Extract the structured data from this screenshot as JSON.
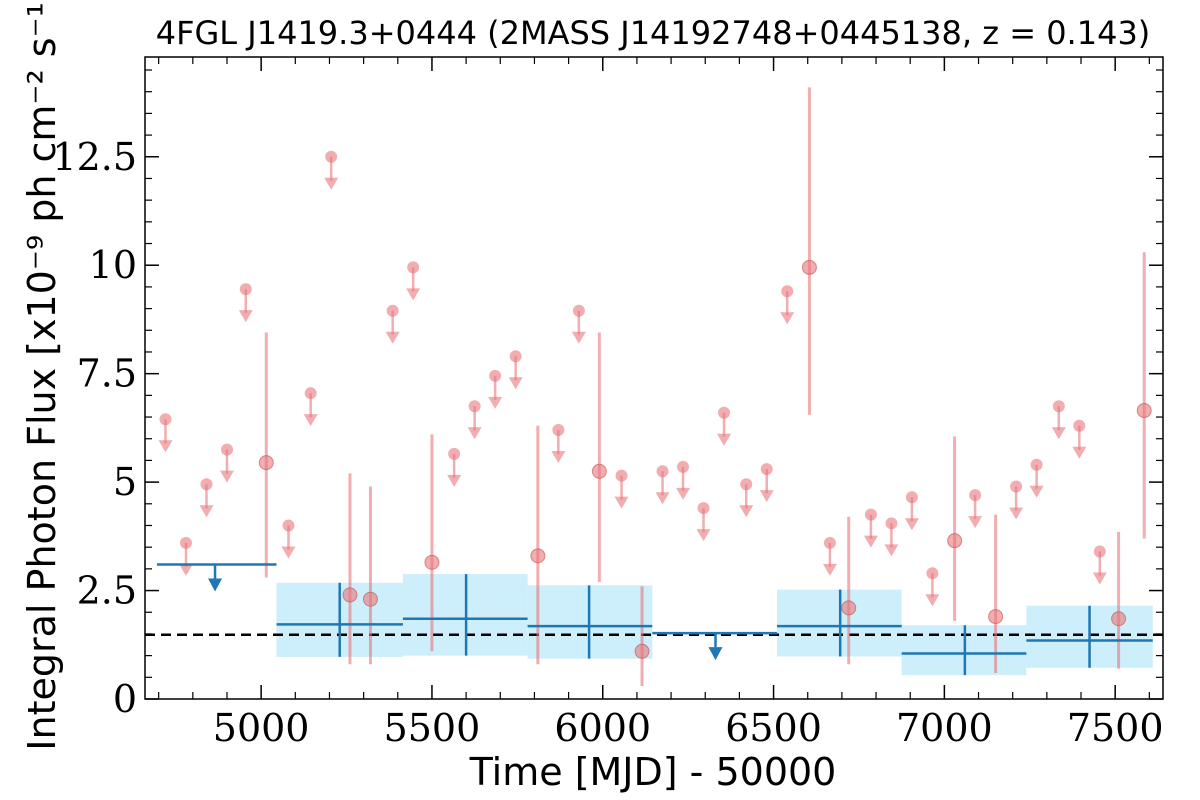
{
  "chart_data": {
    "type": "scatter",
    "title": "4FGL J1419.3+0444 (2MASS J14192748+0445138, z = 0.143)",
    "xlabel": "Time [MJD] - 50000",
    "ylabel": "Integral Photon Flux [x10⁻⁹ ph cm⁻² s⁻¹]",
    "xlim": [
      4660,
      7640
    ],
    "ylim": [
      0,
      14.8
    ],
    "x_ticks": [
      5000,
      5500,
      6000,
      6500,
      7000,
      7500
    ],
    "x_tick_labels": [
      "5000",
      "5500",
      "6000",
      "6500",
      "7000",
      "7500"
    ],
    "y_ticks": [
      0,
      2.5,
      5,
      7.5,
      10,
      12.5
    ],
    "y_tick_labels": [
      "0",
      "2.5",
      "5",
      "7.5",
      "10",
      "12.5"
    ],
    "reference_line": {
      "y": 1.48,
      "style": "dashed",
      "color": "#000000"
    },
    "colors": {
      "short_bins": "#e8767a",
      "long_bins": "#1f77b4",
      "long_bin_band": "#cdeefb"
    },
    "short_bins_detections": [
      {
        "x": 5015,
        "y": 5.45,
        "err_lo": 2.8,
        "err_hi": 8.45
      },
      {
        "x": 5260,
        "y": 2.4,
        "err_lo": 0.8,
        "err_hi": 5.2
      },
      {
        "x": 5320,
        "y": 2.3,
        "err_lo": 0.8,
        "err_hi": 4.9
      },
      {
        "x": 5500,
        "y": 3.15,
        "err_lo": 1.1,
        "err_hi": 6.1
      },
      {
        "x": 5810,
        "y": 3.3,
        "err_lo": 0.8,
        "err_hi": 6.3
      },
      {
        "x": 5990,
        "y": 5.25,
        "err_lo": 2.7,
        "err_hi": 8.45
      },
      {
        "x": 6115,
        "y": 1.1,
        "err_lo": 0.3,
        "err_hi": 2.6
      },
      {
        "x": 6605,
        "y": 9.95,
        "err_lo": 6.55,
        "err_hi": 14.1
      },
      {
        "x": 6720,
        "y": 2.1,
        "err_lo": 0.8,
        "err_hi": 4.2
      },
      {
        "x": 7030,
        "y": 3.65,
        "err_lo": 1.8,
        "err_hi": 6.05
      },
      {
        "x": 7150,
        "y": 1.9,
        "err_lo": 0.6,
        "err_hi": 4.25
      },
      {
        "x": 7510,
        "y": 1.85,
        "err_lo": 0.7,
        "err_hi": 3.85
      },
      {
        "x": 7585,
        "y": 6.65,
        "err_lo": 3.7,
        "err_hi": 10.3
      }
    ],
    "short_bins_upper_limits": [
      {
        "x": 4720,
        "y": 6.45
      },
      {
        "x": 4780,
        "y": 3.6
      },
      {
        "x": 4840,
        "y": 4.95
      },
      {
        "x": 4900,
        "y": 5.75
      },
      {
        "x": 4955,
        "y": 9.45
      },
      {
        "x": 5080,
        "y": 4.0
      },
      {
        "x": 5145,
        "y": 7.05
      },
      {
        "x": 5205,
        "y": 12.5
      },
      {
        "x": 5385,
        "y": 8.95
      },
      {
        "x": 5445,
        "y": 9.95
      },
      {
        "x": 5565,
        "y": 5.65
      },
      {
        "x": 5625,
        "y": 6.75
      },
      {
        "x": 5685,
        "y": 7.45
      },
      {
        "x": 5745,
        "y": 7.9
      },
      {
        "x": 5870,
        "y": 6.2
      },
      {
        "x": 5930,
        "y": 8.95
      },
      {
        "x": 6055,
        "y": 5.15
      },
      {
        "x": 6175,
        "y": 5.25
      },
      {
        "x": 6235,
        "y": 5.35
      },
      {
        "x": 6295,
        "y": 4.4
      },
      {
        "x": 6355,
        "y": 6.6
      },
      {
        "x": 6420,
        "y": 4.95
      },
      {
        "x": 6480,
        "y": 5.3
      },
      {
        "x": 6540,
        "y": 9.4
      },
      {
        "x": 6665,
        "y": 3.6
      },
      {
        "x": 6785,
        "y": 4.25
      },
      {
        "x": 6845,
        "y": 4.05
      },
      {
        "x": 6905,
        "y": 4.65
      },
      {
        "x": 6965,
        "y": 2.9
      },
      {
        "x": 7090,
        "y": 4.7
      },
      {
        "x": 7210,
        "y": 4.9
      },
      {
        "x": 7270,
        "y": 5.4
      },
      {
        "x": 7335,
        "y": 6.75
      },
      {
        "x": 7395,
        "y": 6.3
      },
      {
        "x": 7455,
        "y": 3.4
      }
    ],
    "long_bins": [
      {
        "x_start": 5045,
        "x_end": 5415,
        "x": 5230,
        "y": 1.72,
        "err_lo": 0.97,
        "err_hi": 2.68
      },
      {
        "x_start": 5415,
        "x_end": 5780,
        "x": 5600,
        "y": 1.85,
        "err_lo": 1.0,
        "err_hi": 2.88
      },
      {
        "x_start": 5780,
        "x_end": 6145,
        "x": 5960,
        "y": 1.68,
        "err_lo": 0.93,
        "err_hi": 2.62
      },
      {
        "x_start": 6510,
        "x_end": 6875,
        "x": 6695,
        "y": 1.68,
        "err_lo": 0.98,
        "err_hi": 2.52
      },
      {
        "x_start": 6875,
        "x_end": 7240,
        "x": 7060,
        "y": 1.05,
        "err_lo": 0.55,
        "err_hi": 1.7
      },
      {
        "x_start": 7240,
        "x_end": 7610,
        "x": 7425,
        "y": 1.35,
        "err_lo": 0.72,
        "err_hi": 2.15
      }
    ],
    "long_bins_upper_limits": [
      {
        "x_start": 4695,
        "x_end": 5045,
        "x": 4865,
        "y": 3.1
      },
      {
        "x_start": 6145,
        "x_end": 6510,
        "x": 6330,
        "y": 1.52
      }
    ]
  }
}
